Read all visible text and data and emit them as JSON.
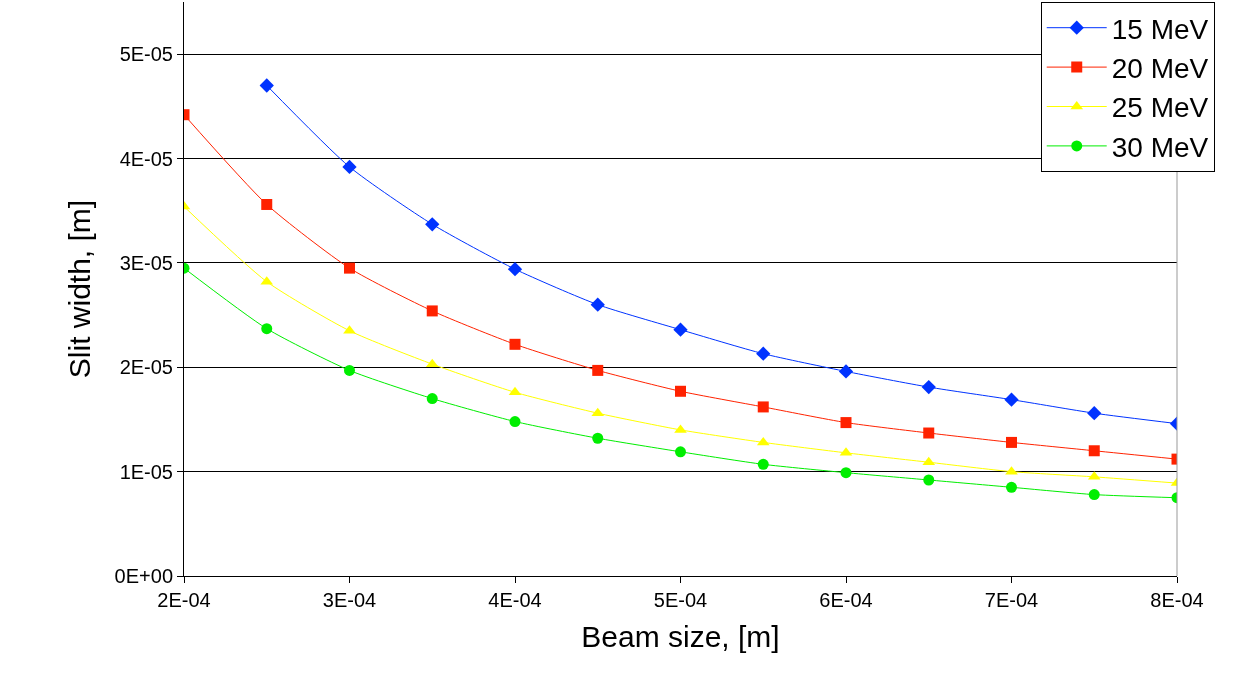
{
  "chart_data": {
    "type": "line",
    "xlabel": "Beam size, [m]",
    "ylabel": "Slit width, [m]",
    "x": [
      0.0002,
      0.00025,
      0.0003,
      0.00035,
      0.0004,
      0.00045,
      0.0005,
      0.00055,
      0.0006,
      0.00065,
      0.0007,
      0.00075,
      0.0008
    ],
    "series": [
      {
        "name": "15 MeV",
        "color": "#0033ff",
        "marker": "diamond",
        "values": [
          null,
          4.7e-05,
          3.92e-05,
          3.37e-05,
          2.94e-05,
          2.6e-05,
          2.36e-05,
          2.13e-05,
          1.96e-05,
          1.81e-05,
          1.69e-05,
          1.56e-05,
          1.46e-05
        ]
      },
      {
        "name": "20 MeV",
        "color": "#ff2200",
        "marker": "square",
        "values": [
          4.42e-05,
          3.56e-05,
          2.95e-05,
          2.54e-05,
          2.22e-05,
          1.97e-05,
          1.77e-05,
          1.62e-05,
          1.47e-05,
          1.37e-05,
          1.28e-05,
          1.2e-05,
          1.12e-05
        ]
      },
      {
        "name": "25 MeV",
        "color": "#ffff00",
        "marker": "triangle",
        "values": [
          3.54e-05,
          2.82e-05,
          2.35e-05,
          2.03e-05,
          1.76e-05,
          1.56e-05,
          1.4e-05,
          1.28e-05,
          1.18e-05,
          1.09e-05,
          1e-05,
          9.5e-06,
          8.9e-06
        ]
      },
      {
        "name": "30 MeV",
        "color": "#00ee00",
        "marker": "circle",
        "values": [
          2.95e-05,
          2.37e-05,
          1.97e-05,
          1.7e-05,
          1.48e-05,
          1.32e-05,
          1.19e-05,
          1.07e-05,
          9.9e-06,
          9.2e-06,
          8.5e-06,
          7.8e-06,
          7.5e-06
        ]
      }
    ],
    "xlim": [
      0.0002,
      0.0008
    ],
    "xticks": [
      {
        "value": 0.0002,
        "label": "2E-04"
      },
      {
        "value": 0.0003,
        "label": "3E-04"
      },
      {
        "value": 0.0004,
        "label": "4E-04"
      },
      {
        "value": 0.0005,
        "label": "5E-04"
      },
      {
        "value": 0.0006,
        "label": "6E-04"
      },
      {
        "value": 0.0007,
        "label": "7E-04"
      },
      {
        "value": 0.0008,
        "label": "8E-04"
      }
    ],
    "ylim": [
      0,
      5.5e-05
    ],
    "yticks": [
      {
        "value": 0,
        "label": "0E+00"
      },
      {
        "value": 1e-05,
        "label": "1E-05"
      },
      {
        "value": 2e-05,
        "label": "2E-05"
      },
      {
        "value": 3e-05,
        "label": "3E-05"
      },
      {
        "value": 4e-05,
        "label": "4E-05"
      },
      {
        "value": 5e-05,
        "label": "5E-05"
      }
    ],
    "grid": "y",
    "legend": "top right",
    "line_style": "solid"
  }
}
